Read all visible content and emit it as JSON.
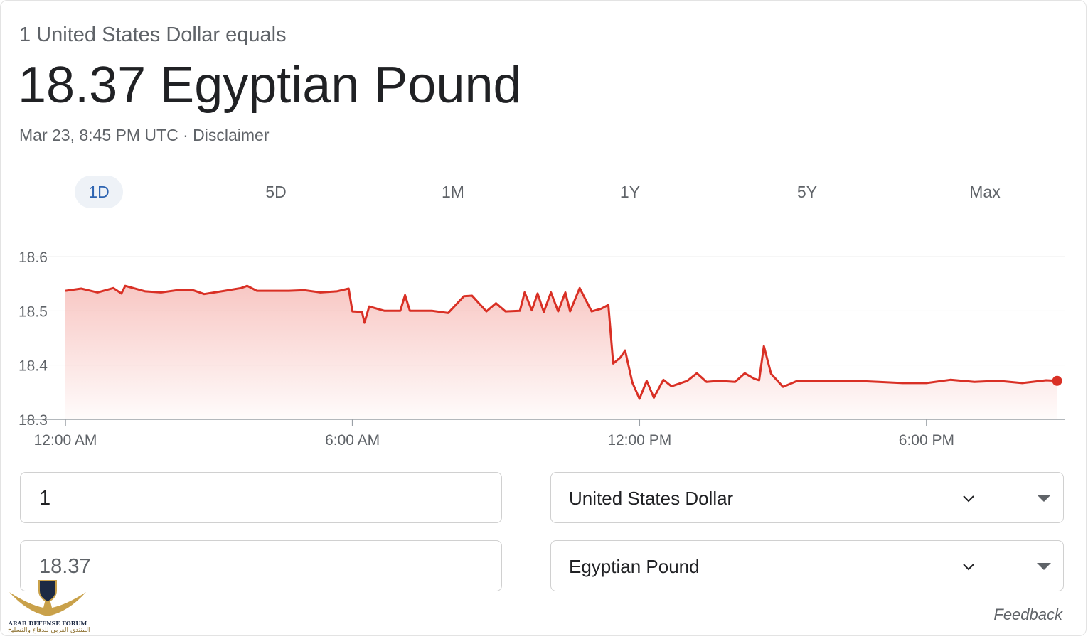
{
  "header": {
    "subtitle": "1 United States Dollar equals",
    "title": "18.37 Egyptian Pound",
    "timestamp": "Mar 23, 8:45 PM UTC",
    "separator": "·",
    "disclaimer": "Disclaimer"
  },
  "tabs": [
    "1D",
    "5D",
    "1M",
    "1Y",
    "5Y",
    "Max"
  ],
  "active_tab": 0,
  "chart_data": {
    "type": "line",
    "color": "#d93025",
    "grid": true,
    "x": [
      0,
      0.33,
      0.67,
      1.0,
      1.17,
      1.25,
      1.67,
      2.0,
      2.33,
      2.67,
      2.9,
      3.33,
      3.67,
      3.8,
      4.0,
      4.67,
      5.0,
      5.33,
      5.67,
      5.92,
      6.0,
      6.2,
      6.25,
      6.35,
      6.67,
      7.0,
      7.1,
      7.2,
      7.67,
      8.0,
      8.33,
      8.5,
      8.8,
      9.0,
      9.2,
      9.5,
      9.6,
      9.75,
      9.87,
      10.0,
      10.15,
      10.3,
      10.45,
      10.55,
      10.75,
      11.0,
      11.2,
      11.35,
      11.45,
      11.6,
      11.7,
      11.85,
      12.0,
      12.15,
      12.3,
      12.5,
      12.67,
      13.0,
      13.2,
      13.4,
      13.67,
      14.0,
      14.2,
      14.4,
      14.5,
      14.6,
      14.75,
      15.0,
      15.3,
      15.67,
      16.0,
      16.5,
      17.0,
      17.5,
      18.0,
      18.5,
      19.0,
      19.5,
      20.0,
      20.5,
      20.73
    ],
    "values": [
      18.537,
      18.541,
      18.534,
      18.542,
      18.532,
      18.546,
      18.536,
      18.534,
      18.538,
      18.538,
      18.531,
      18.537,
      18.542,
      18.546,
      18.537,
      18.537,
      18.538,
      18.534,
      18.536,
      18.541,
      18.499,
      18.498,
      18.478,
      18.508,
      18.5,
      18.5,
      18.529,
      18.5,
      18.5,
      18.496,
      18.527,
      18.528,
      18.499,
      18.514,
      18.499,
      18.5,
      18.534,
      18.501,
      18.532,
      18.498,
      18.534,
      18.499,
      18.534,
      18.499,
      18.542,
      18.499,
      18.504,
      18.511,
      18.403,
      18.414,
      18.427,
      18.368,
      18.338,
      18.371,
      18.34,
      18.373,
      18.361,
      18.371,
      18.385,
      18.369,
      18.371,
      18.369,
      18.385,
      18.375,
      18.372,
      18.435,
      18.384,
      18.36,
      18.371,
      18.371,
      18.371,
      18.371,
      18.369,
      18.367,
      18.367,
      18.373,
      18.369,
      18.371,
      18.367,
      18.372,
      18.371
    ],
    "xlim": [
      0,
      20.9
    ],
    "ylim": [
      18.3,
      18.6
    ],
    "xticks": [
      {
        "value": 0,
        "label": "12:00 AM"
      },
      {
        "value": 6,
        "label": "6:00 AM"
      },
      {
        "value": 12,
        "label": "12:00 PM"
      },
      {
        "value": 18,
        "label": "6:00 PM"
      }
    ],
    "yticks": [
      18.3,
      18.4,
      18.5,
      18.6
    ]
  },
  "converter": {
    "from_amount": "1",
    "to_amount": "18.37",
    "from_currency": "United States Dollar",
    "to_currency": "Egyptian Pound"
  },
  "feedback": "Feedback",
  "watermark": {
    "name": "ARAB DEFENSE FORUM",
    "arabic": "المنتدى العربي للدفاع والتسليح"
  }
}
